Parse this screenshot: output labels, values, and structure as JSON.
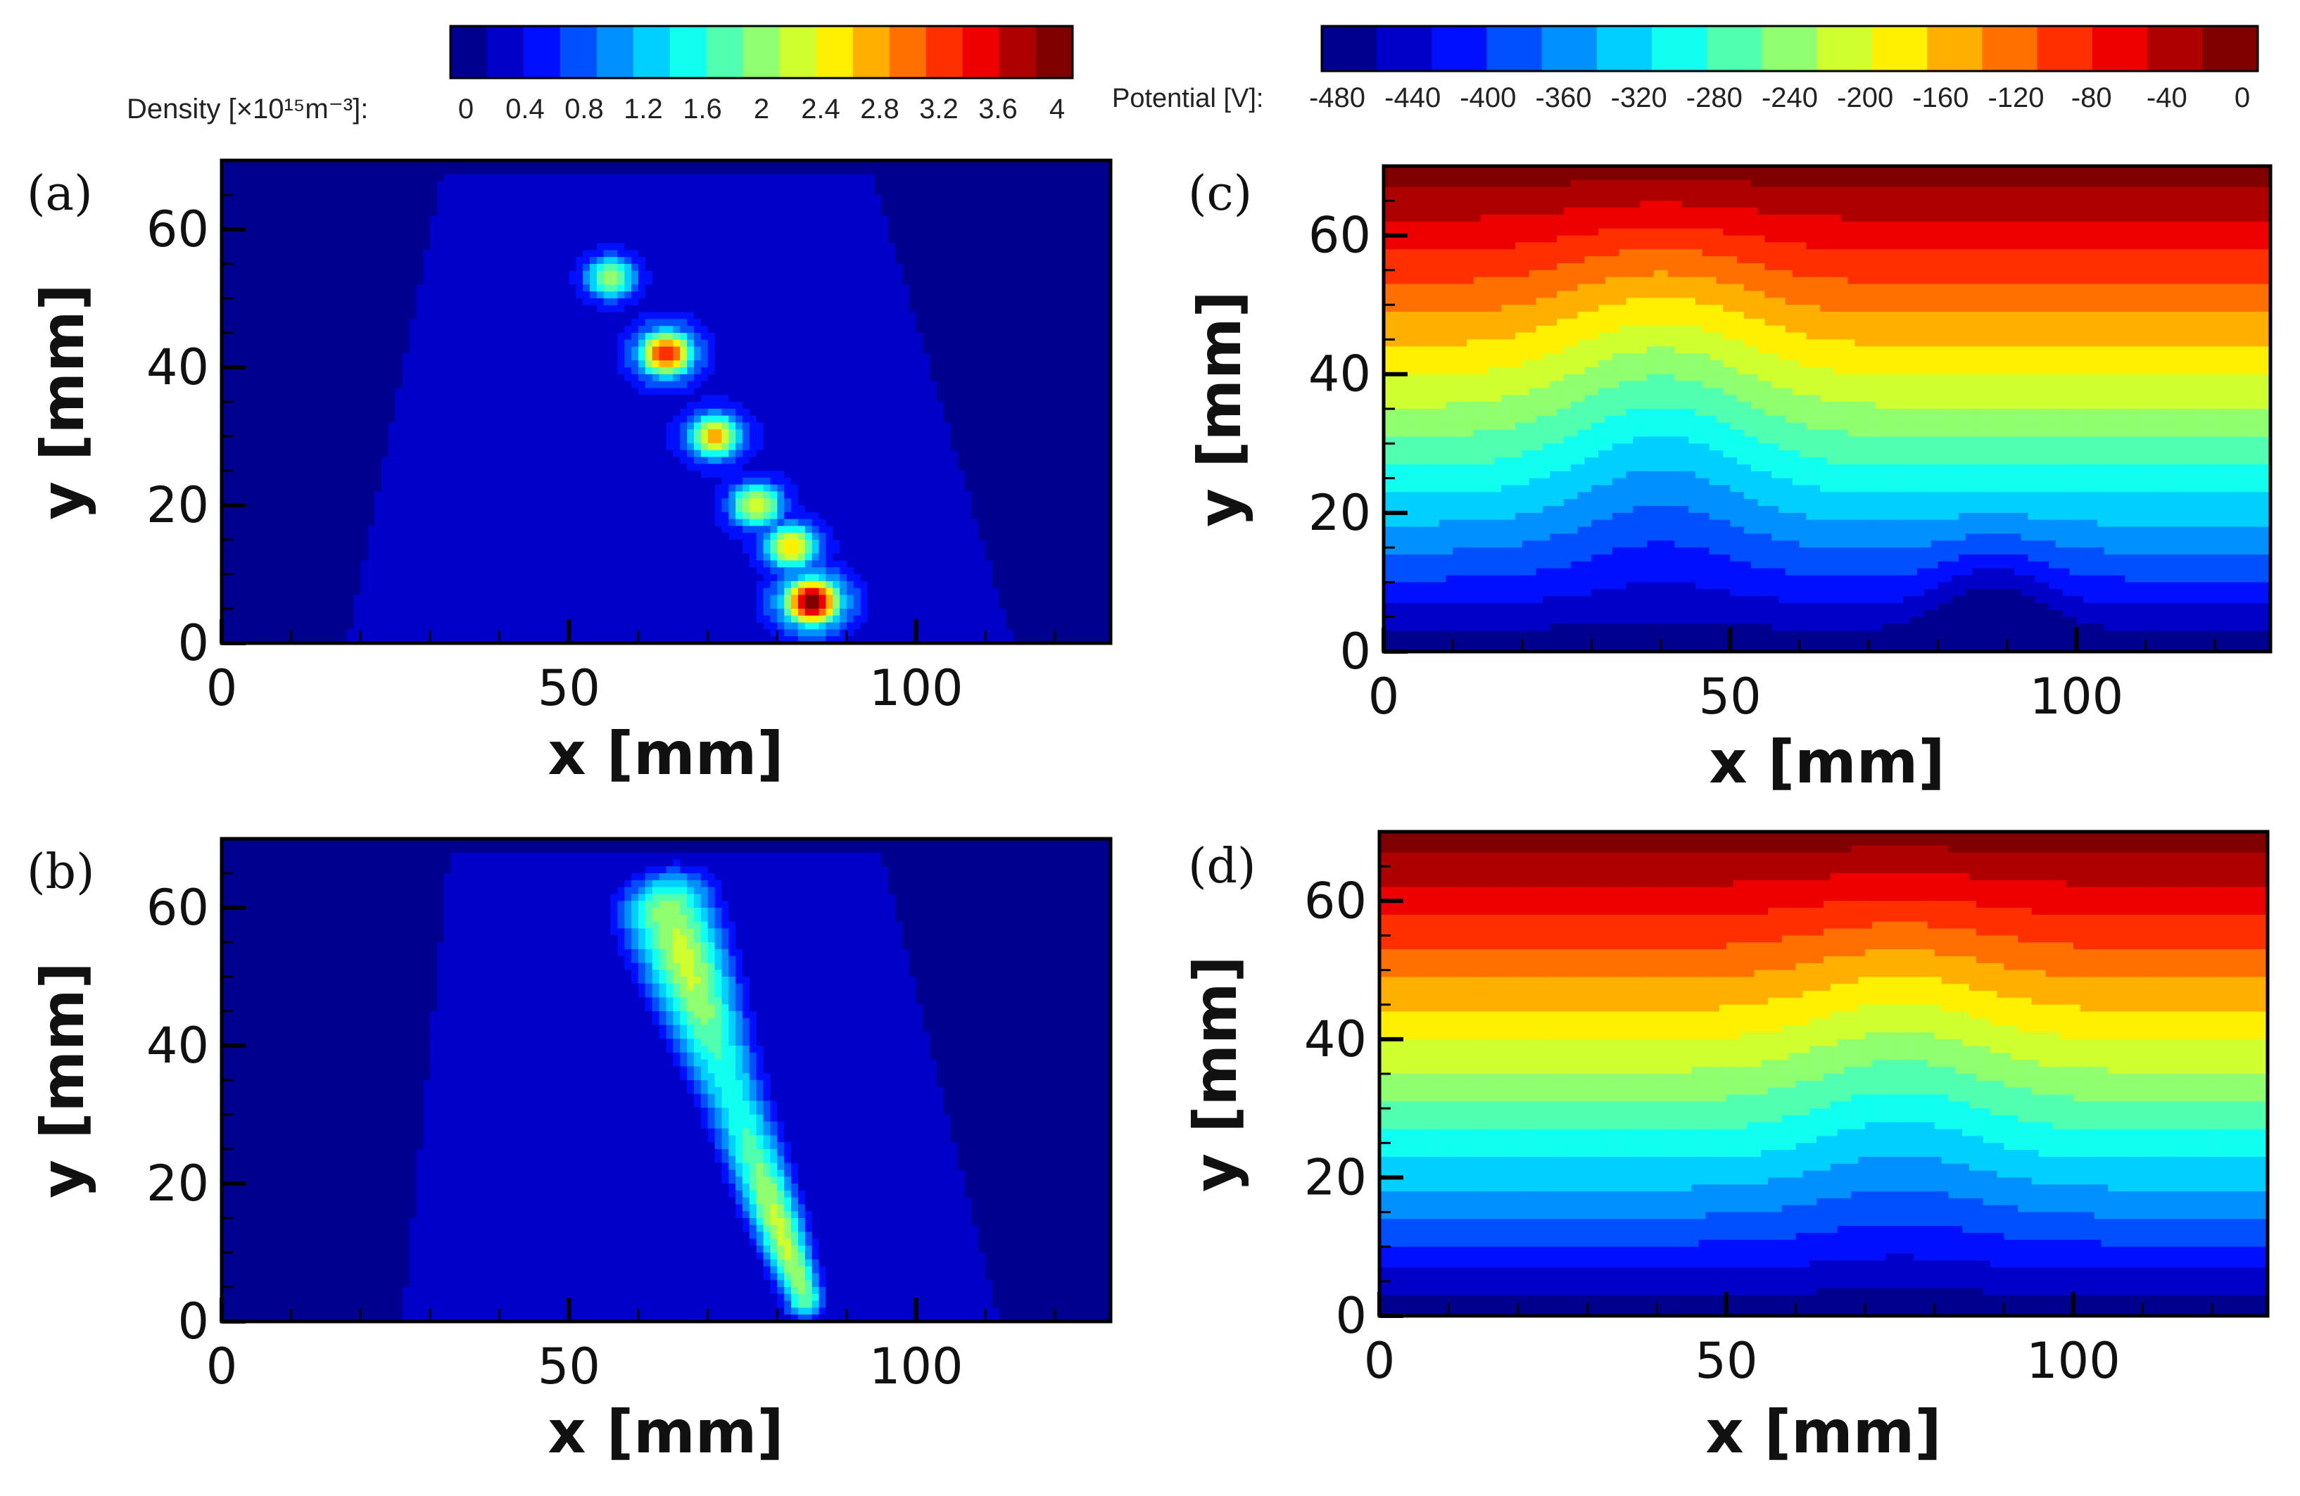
{
  "colors": {
    "jet": [
      "#00008f",
      "#0000c8",
      "#0010ff",
      "#0050ff",
      "#0090ff",
      "#00d0ff",
      "#10ffef",
      "#50ffaf",
      "#90ff6f",
      "#d0ff2f",
      "#ffef00",
      "#ffaf00",
      "#ff7000",
      "#ff3000",
      "#ef0000",
      "#af0000",
      "#800000"
    ]
  },
  "colorbars": {
    "density": {
      "title": "Density [×10¹⁵m⁻³]:",
      "ticks": [
        "0",
        "0.4",
        "0.8",
        "1.2",
        "1.6",
        "2",
        "2.4",
        "2.8",
        "3.2",
        "3.6",
        "4"
      ],
      "range": [
        0,
        4
      ]
    },
    "potential": {
      "title": "Potential [V]:",
      "ticks": [
        "-480",
        "-440",
        "-400",
        "-360",
        "-320",
        "-280",
        "-240",
        "-200",
        "-160",
        "-120",
        "-80",
        "-40",
        "0"
      ],
      "range": [
        -500,
        0
      ]
    }
  },
  "chart_data": [
    {
      "panel": "(a)",
      "type": "heatmap",
      "quantity": "density",
      "xlabel": "x [mm]",
      "ylabel": "y [mm]",
      "xlim": [
        0,
        128
      ],
      "ylim": [
        0,
        70
      ],
      "xticks": [
        "0",
        "50",
        "100"
      ],
      "yticks": [
        "0",
        "20",
        "40",
        "60"
      ],
      "xtick_values": [
        0,
        50,
        100
      ],
      "ytick_values": [
        0,
        20,
        40,
        60
      ],
      "plume": {
        "background": 0.3,
        "blobs": [
          {
            "x": 85,
            "y": 6,
            "peak": 4.0
          },
          {
            "x": 82,
            "y": 14,
            "peak": 2.6
          },
          {
            "x": 77,
            "y": 20,
            "peak": 2.4
          },
          {
            "x": 71,
            "y": 30,
            "peak": 2.7
          },
          {
            "x": 64,
            "y": 42,
            "peak": 3.3
          },
          {
            "x": 56,
            "y": 53,
            "peak": 2.0
          }
        ]
      }
    },
    {
      "panel": "(b)",
      "type": "heatmap",
      "quantity": "density",
      "xlabel": "x [mm]",
      "ylabel": "y [mm]",
      "xlim": [
        0,
        128
      ],
      "ylim": [
        0,
        70
      ],
      "xticks": [
        "0",
        "50",
        "100"
      ],
      "yticks": [
        "0",
        "20",
        "40",
        "60"
      ],
      "xtick_values": [
        0,
        50,
        100
      ],
      "ytick_values": [
        0,
        20,
        40,
        60
      ],
      "plume": {
        "background": 0.3,
        "beam": {
          "start": [
            84,
            3
          ],
          "end": [
            64,
            60
          ],
          "peak": 2.2
        }
      }
    },
    {
      "panel": "(c)",
      "type": "heatmap",
      "quantity": "potential",
      "xlabel": "x [mm]",
      "ylabel": "y [mm]",
      "xlim": [
        0,
        128
      ],
      "ylim": [
        0,
        70
      ],
      "xticks": [
        "0",
        "50",
        "100"
      ],
      "yticks": [
        "0",
        "20",
        "40",
        "60"
      ],
      "xtick_values": [
        0,
        50,
        100
      ],
      "ytick_values": [
        0,
        20,
        40,
        60
      ],
      "field": {
        "top_value": -10,
        "bottom_value": -500,
        "dip": {
          "x": 40,
          "depth": -60
        },
        "notch": {
          "x": 88,
          "y": 0
        }
      }
    },
    {
      "panel": "(d)",
      "type": "heatmap",
      "quantity": "potential",
      "xlabel": "x [mm]",
      "ylabel": "y [mm]",
      "xlim": [
        0,
        128
      ],
      "ylim": [
        0,
        70
      ],
      "xticks": [
        "0",
        "50",
        "100"
      ],
      "yticks": [
        "0",
        "20",
        "40",
        "60"
      ],
      "xtick_values": [
        0,
        50,
        100
      ],
      "ytick_values": [
        0,
        20,
        40,
        60
      ],
      "field": {
        "top_value": -10,
        "bottom_value": -500,
        "dip": {
          "x": 75,
          "depth": -40
        }
      }
    }
  ]
}
